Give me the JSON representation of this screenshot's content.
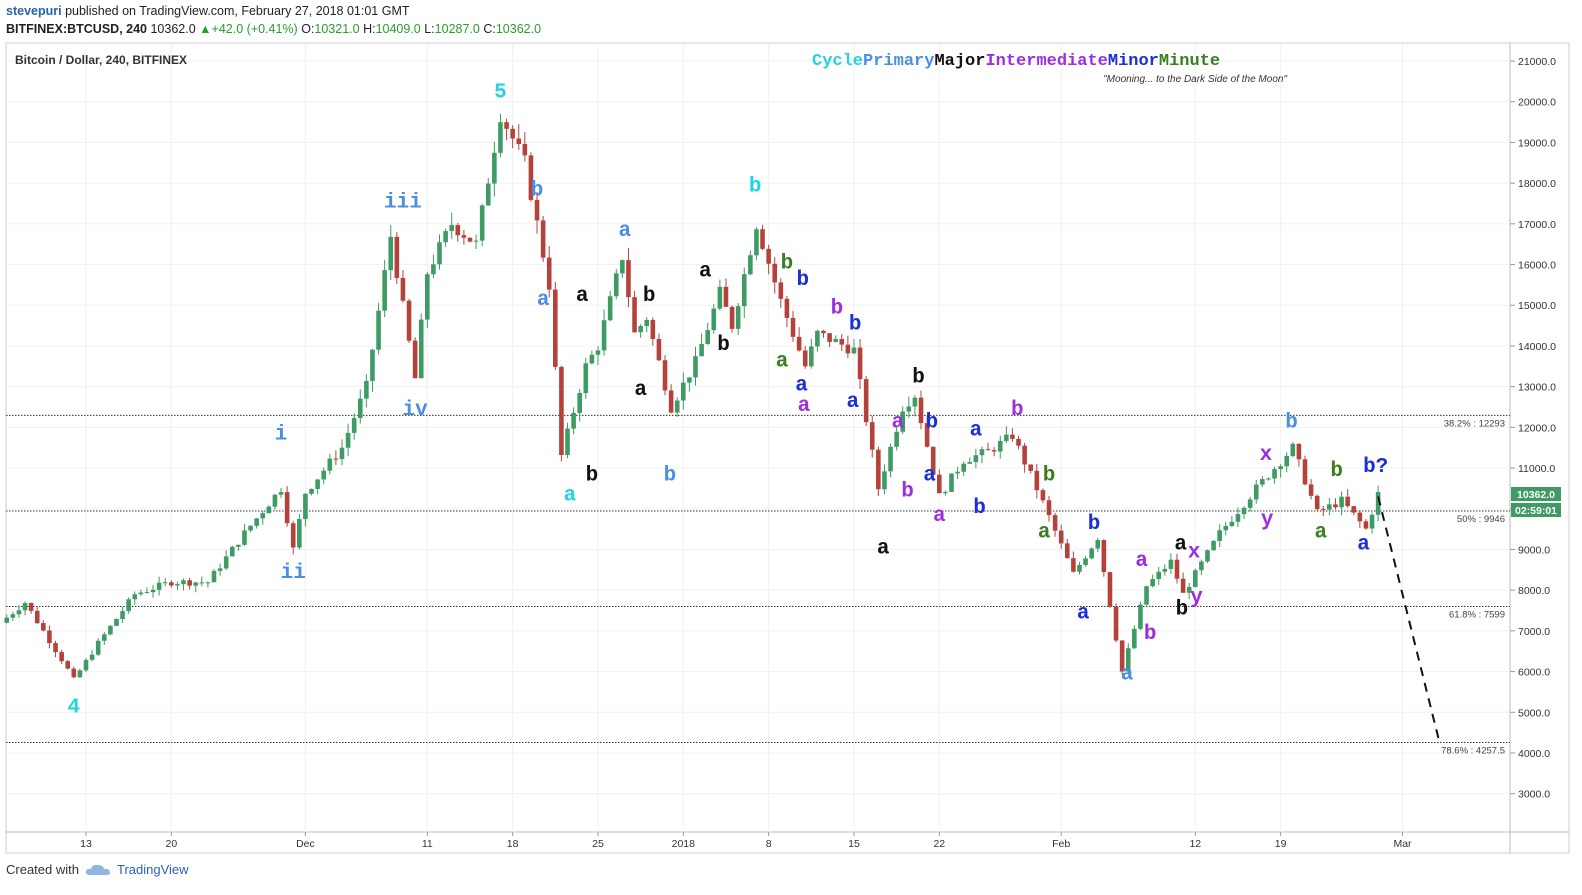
{
  "header": {
    "user": "stevepuri",
    "published": "published on TradingView.com, February 27, 2018 01:01 GMT",
    "symbol": "BITFINEX:BTCUSD, 240",
    "last": "10362.0",
    "change": "+42.0 (+0.41%)",
    "o_label": "O:",
    "o_value": "10321.0",
    "h_label": "H:",
    "h_value": "10409.0",
    "l_label": "L:",
    "l_value": "10287.0",
    "c_label": "C:",
    "c_value": "10362.0"
  },
  "footer": {
    "created_with": "Created with",
    "brand": "TradingView"
  },
  "colors": {
    "up": "#3d9b63",
    "down": "#b5423a",
    "cycle": "#22d3e6",
    "primary": "#4a8fe0",
    "major": "#111111",
    "intermediate": "#9b2fe0",
    "minor": "#1a2fd6",
    "minute": "#3a7d22"
  },
  "chart_data": {
    "type": "candlestick",
    "title": "Bitcoin / Dollar, 240, BITFINEX",
    "legend_words": [
      {
        "text": "Cycle",
        "level": "cycle"
      },
      {
        "text": "Primary",
        "level": "primary"
      },
      {
        "text": "Major",
        "level": "major"
      },
      {
        "text": "Intermediate",
        "level": "intermediate"
      },
      {
        "text": "Minor",
        "level": "minor"
      },
      {
        "text": "Minute",
        "level": "minute"
      }
    ],
    "subtitle": "\"Mooning... to the Dark Side of the Moon\"",
    "ylim": [
      2000,
      21500
    ],
    "yticks": [
      "21000.0",
      "20000.0",
      "19000.0",
      "18000.0",
      "17000.0",
      "16000.0",
      "15000.0",
      "14000.0",
      "13000.0",
      "12000.0",
      "11000.0",
      "10000.0",
      "9000.0",
      "8000.0",
      "7000.0",
      "6000.0",
      "5000.0",
      "4000.0",
      "3000.0"
    ],
    "xticks": [
      "13",
      "20",
      "Dec",
      "11",
      "18",
      "25",
      "2018",
      "8",
      "15",
      "22",
      "Feb",
      "12",
      "19",
      "Mar"
    ],
    "last_price_label": "10362.0",
    "countdown_label": "02:59:01",
    "path_anchors": [
      {
        "d": "Nov 06",
        "p": 7200
      },
      {
        "d": "Nov 08",
        "p": 7700
      },
      {
        "d": "Nov 11",
        "p": 6300
      },
      {
        "d": "Nov 12",
        "p": 5800
      },
      {
        "d": "Nov 14",
        "p": 6700
      },
      {
        "d": "Nov 17",
        "p": 7900
      },
      {
        "d": "Nov 20",
        "p": 8200
      },
      {
        "d": "Nov 23",
        "p": 8200
      },
      {
        "d": "Nov 26",
        "p": 9400
      },
      {
        "d": "Nov 29",
        "p": 10500
      },
      {
        "d": "Nov 30",
        "p": 9000
      },
      {
        "d": "Dec 01",
        "p": 10400
      },
      {
        "d": "Dec 04",
        "p": 11500
      },
      {
        "d": "Dec 06",
        "p": 13000
      },
      {
        "d": "Dec 08",
        "p": 16700
      },
      {
        "d": "Dec 10",
        "p": 13200
      },
      {
        "d": "Dec 11",
        "p": 15800
      },
      {
        "d": "Dec 13",
        "p": 17000
      },
      {
        "d": "Dec 15",
        "p": 16500
      },
      {
        "d": "Dec 17",
        "p": 19700
      },
      {
        "d": "Dec 19",
        "p": 18500
      },
      {
        "d": "Dec 21",
        "p": 15500
      },
      {
        "d": "Dec 22",
        "p": 11300
      },
      {
        "d": "Dec 24",
        "p": 13500
      },
      {
        "d": "Dec 25",
        "p": 14000
      },
      {
        "d": "Dec 27",
        "p": 16200
      },
      {
        "d": "Dec 28",
        "p": 14300
      },
      {
        "d": "Dec 29",
        "p": 14700
      },
      {
        "d": "Dec 31",
        "p": 12500
      },
      {
        "d": "Jan 02",
        "p": 13600
      },
      {
        "d": "Jan 04",
        "p": 15300
      },
      {
        "d": "Jan 05",
        "p": 14500
      },
      {
        "d": "Jan 07",
        "p": 17000
      },
      {
        "d": "Jan 09",
        "p": 15100
      },
      {
        "d": "Jan 11",
        "p": 13500
      },
      {
        "d": "Jan 12",
        "p": 14300
      },
      {
        "d": "Jan 15",
        "p": 13900
      },
      {
        "d": "Jan 17",
        "p": 10500
      },
      {
        "d": "Jan 19",
        "p": 12500
      },
      {
        "d": "Jan 20",
        "p": 12800
      },
      {
        "d": "Jan 22",
        "p": 10300
      },
      {
        "d": "Jan 24",
        "p": 11200
      },
      {
        "d": "Jan 26",
        "p": 11400
      },
      {
        "d": "Jan 28",
        "p": 11800
      },
      {
        "d": "Jan 30",
        "p": 10500
      },
      {
        "d": "Feb 02",
        "p": 8400
      },
      {
        "d": "Feb 04",
        "p": 9300
      },
      {
        "d": "Feb 06",
        "p": 6000
      },
      {
        "d": "Feb 08",
        "p": 8100
      },
      {
        "d": "Feb 10",
        "p": 8700
      },
      {
        "d": "Feb 11",
        "p": 7900
      },
      {
        "d": "Feb 14",
        "p": 9400
      },
      {
        "d": "Feb 17",
        "p": 10500
      },
      {
        "d": "Feb 20",
        "p": 11500
      },
      {
        "d": "Feb 22",
        "p": 9900
      },
      {
        "d": "Feb 24",
        "p": 10200
      },
      {
        "d": "Feb 26",
        "p": 9500
      },
      {
        "d": "Feb 27",
        "p": 10362
      }
    ],
    "fib_levels": [
      {
        "label": "38.2% : 12293",
        "value": 12293
      },
      {
        "label": "50% : 9946",
        "value": 9946
      },
      {
        "label": "61.8% : 7599",
        "value": 7599
      },
      {
        "label": "78.6% : 4257.5",
        "value": 4257.5
      }
    ],
    "projection": [
      {
        "d": "Feb 27",
        "p": 10300
      },
      {
        "d": "Mar 04",
        "p": 4300
      }
    ],
    "wave_labels": [
      {
        "text": "4",
        "level": "cycle",
        "d": "Nov 12",
        "p": 5000
      },
      {
        "text": "i",
        "level": "primary",
        "d": "Nov 29",
        "p": 11700
      },
      {
        "text": "ii",
        "level": "primary",
        "d": "Nov 30",
        "p": 8300
      },
      {
        "text": "iii",
        "level": "primary",
        "d": "Dec 09",
        "p": 17400
      },
      {
        "text": "iv",
        "level": "primary",
        "d": "Dec 10",
        "p": 12300
      },
      {
        "text": "5",
        "level": "cycle",
        "d": "Dec 17",
        "p": 20100
      },
      {
        "text": "b",
        "level": "primary",
        "d": "Dec 20",
        "p": 17700
      },
      {
        "text": "a",
        "level": "primary",
        "d": "Dec 20.5",
        "p": 15000
      },
      {
        "text": "a",
        "level": "cycle",
        "d": "Dec 22.7",
        "p": 10200
      },
      {
        "text": "a",
        "level": "major",
        "d": "Dec 23.7",
        "p": 15100
      },
      {
        "text": "b",
        "level": "major",
        "d": "Dec 24.5",
        "p": 10700
      },
      {
        "text": "a",
        "level": "primary",
        "d": "Dec 27.2",
        "p": 16700
      },
      {
        "text": "b",
        "level": "major",
        "d": "Dec 29.2",
        "p": 15100
      },
      {
        "text": "a",
        "level": "major",
        "d": "Dec 28.5",
        "p": 12800
      },
      {
        "text": "b",
        "level": "primary",
        "d": "Dec 30.9",
        "p": 10700
      },
      {
        "text": "a",
        "level": "major",
        "d": "Jan 02.8",
        "p": 15700
      },
      {
        "text": "b",
        "level": "major",
        "d": "Jan 04.3",
        "p": 13900
      },
      {
        "text": "b",
        "level": "cycle",
        "d": "Jan 06.9",
        "p": 17800
      },
      {
        "text": "b",
        "level": "minute",
        "d": "Jan 09.5",
        "p": 15900
      },
      {
        "text": "a",
        "level": "minute",
        "d": "Jan 09.1",
        "p": 13500
      },
      {
        "text": "b",
        "level": "minor",
        "d": "Jan 10.8",
        "p": 15500
      },
      {
        "text": "a",
        "level": "minor",
        "d": "Jan 10.7",
        "p": 12900
      },
      {
        "text": "a",
        "level": "intermediate",
        "d": "Jan 10.9",
        "p": 12400
      },
      {
        "text": "b",
        "level": "intermediate",
        "d": "Jan 13.6",
        "p": 14800
      },
      {
        "text": "b",
        "level": "minor",
        "d": "Jan 15.1",
        "p": 14400
      },
      {
        "text": "a",
        "level": "minor",
        "d": "Jan 14.9",
        "p": 12500
      },
      {
        "text": "a",
        "level": "major",
        "d": "Jan 17.4",
        "p": 8900
      },
      {
        "text": "a",
        "level": "intermediate",
        "d": "Jan 18.6",
        "p": 12000
      },
      {
        "text": "b",
        "level": "intermediate",
        "d": "Jan 19.4",
        "p": 10300
      },
      {
        "text": "b",
        "level": "major",
        "d": "Jan 20.3",
        "p": 13100
      },
      {
        "text": "b",
        "level": "minor",
        "d": "Jan 21.4",
        "p": 12000
      },
      {
        "text": "a",
        "level": "minor",
        "d": "Jan 21.2",
        "p": 10700
      },
      {
        "text": "a",
        "level": "intermediate",
        "d": "Jan 22.0",
        "p": 9700
      },
      {
        "text": "a",
        "level": "minor",
        "d": "Jan 25.0",
        "p": 11800
      },
      {
        "text": "b",
        "level": "minor",
        "d": "Jan 25.3",
        "p": 9900
      },
      {
        "text": "b",
        "level": "intermediate",
        "d": "Jan 28.4",
        "p": 12300
      },
      {
        "text": "b",
        "level": "minute",
        "d": "Feb 00.0",
        "p": 10700
      },
      {
        "text": "a",
        "level": "minute",
        "d": "Jan 30.6",
        "p": 9300
      },
      {
        "text": "b",
        "level": "minor",
        "d": "Feb 03.7",
        "p": 9500
      },
      {
        "text": "a",
        "level": "minor",
        "d": "Feb 02.8",
        "p": 7300
      },
      {
        "text": "a",
        "level": "primary",
        "d": "Feb 06.4",
        "p": 5800
      },
      {
        "text": "a",
        "level": "intermediate",
        "d": "Feb 07.6",
        "p": 8600
      },
      {
        "text": "b",
        "level": "intermediate",
        "d": "Feb 08.3",
        "p": 6800
      },
      {
        "text": "a",
        "level": "major",
        "d": "Feb 10.8",
        "p": 9000
      },
      {
        "text": "b",
        "level": "major",
        "d": "Feb 10.9",
        "p": 7400
      },
      {
        "text": "x",
        "level": "intermediate",
        "d": "Feb 11.9",
        "p": 8800
      },
      {
        "text": "y",
        "level": "intermediate",
        "d": "Feb 12.1",
        "p": 7700
      },
      {
        "text": "x",
        "level": "intermediate",
        "d": "Feb 17.8",
        "p": 11200
      },
      {
        "text": "y",
        "level": "intermediate",
        "d": "Feb 17.9",
        "p": 9600
      },
      {
        "text": "b",
        "level": "primary",
        "d": "Feb 19.9",
        "p": 12000
      },
      {
        "text": "b",
        "level": "minute",
        "d": "Feb 23.6",
        "p": 10800
      },
      {
        "text": "a",
        "level": "minute",
        "d": "Feb 22.3",
        "p": 9300
      },
      {
        "text": "b?",
        "level": "minor",
        "d": "Feb 26.8",
        "p": 10900
      },
      {
        "text": "a",
        "level": "minor",
        "d": "Feb 25.8",
        "p": 9000
      }
    ]
  }
}
